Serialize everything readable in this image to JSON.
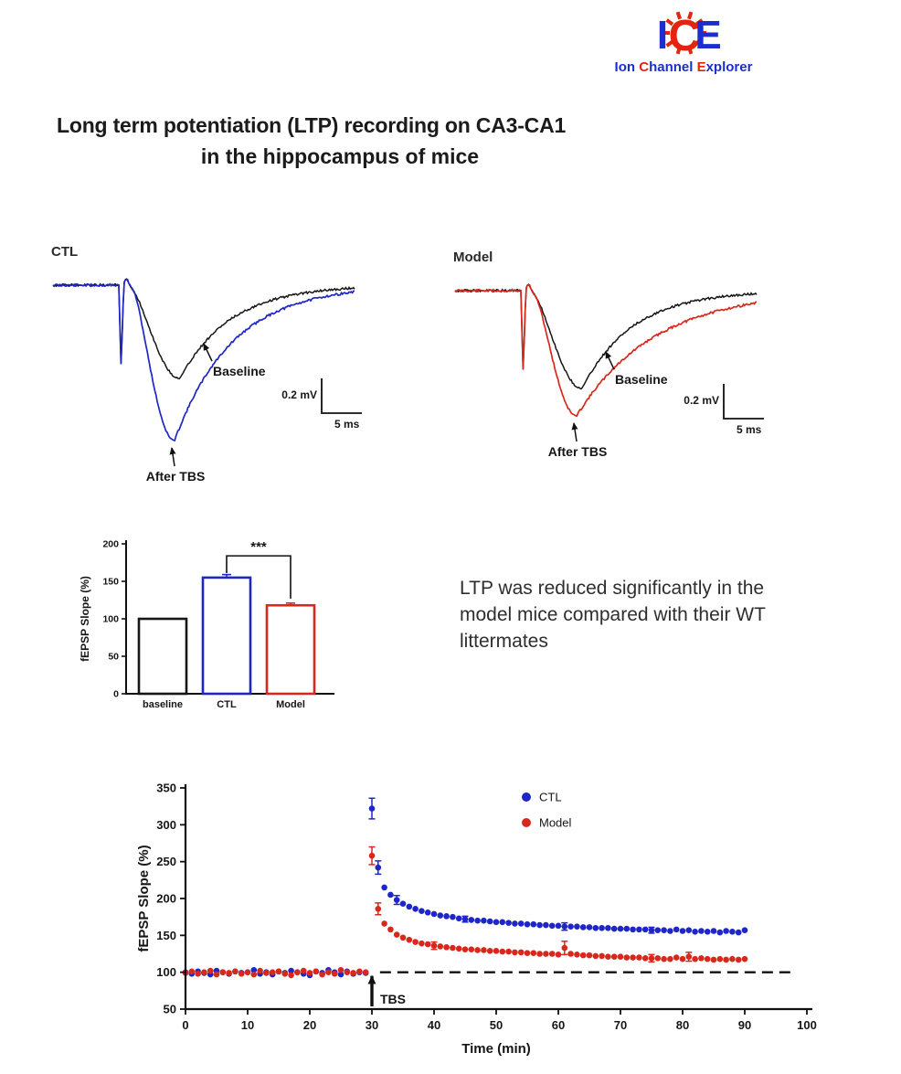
{
  "logo": {
    "mark_letters": [
      {
        "ch": "I",
        "color": "#1b2fd0"
      },
      {
        "ch": "C",
        "color": "#e3240e"
      },
      {
        "ch": "E",
        "color": "#1b2fd0"
      }
    ],
    "text_parts": [
      {
        "text": "Ion ",
        "color": "#1b2fd0"
      },
      {
        "text": "C",
        "color": "#e3240e"
      },
      {
        "text": "hannel ",
        "color": "#1b2fd0"
      },
      {
        "text": "E",
        "color": "#e3240e"
      },
      {
        "text": "xplorer",
        "color": "#1b2fd0"
      }
    ]
  },
  "title": {
    "line1": "Long term potentiation (LTP) recording on CA3-CA1",
    "line2": "in the hippocampus of mice"
  },
  "note": "LTP was reduced significantly in the model mice compared with their WT littermates",
  "trace_panels": [
    {
      "id": "ctl",
      "label": "CTL",
      "baseline_color": "#161616",
      "tbs_color": "#1f26c8",
      "baseline_label": "Baseline",
      "after_tbs_label": "After TBS",
      "scale_v_label": "0.2 mV",
      "scale_h_label": "5 ms",
      "baseline_depth": 102,
      "tbs_depth": 170,
      "baseline_tau": 55,
      "tbs_tau": 63
    },
    {
      "id": "model",
      "label": "Model",
      "baseline_color": "#161616",
      "tbs_color": "#d8281c",
      "baseline_label": "Baseline",
      "after_tbs_label": "After TBS",
      "scale_v_label": "0.2 mV",
      "scale_h_label": "5 ms",
      "baseline_depth": 107,
      "tbs_depth": 137,
      "baseline_tau": 55,
      "tbs_tau": 85
    }
  ],
  "chart_data": [
    {
      "type": "bar",
      "title": "",
      "ylabel": "fEPSP Slope (%)",
      "ylim": [
        0,
        200
      ],
      "yticks": [
        0,
        50,
        100,
        150,
        200
      ],
      "categories": [
        "baseline",
        "CTL",
        "Model"
      ],
      "values": [
        100,
        155,
        118
      ],
      "errors": [
        0,
        4,
        3
      ],
      "bar_colors": [
        "#161616",
        "#1f26c8",
        "#d8281c"
      ],
      "significance": {
        "label": "***",
        "between": [
          "CTL",
          "Model"
        ]
      }
    },
    {
      "type": "scatter",
      "title": "",
      "xlabel": "Time (min)",
      "ylabel": "fEPSP Slope (%)",
      "xlim": [
        0,
        100
      ],
      "ylim": [
        50,
        350
      ],
      "xticks": [
        0,
        10,
        20,
        30,
        40,
        50,
        60,
        70,
        80,
        90,
        100
      ],
      "yticks": [
        50,
        100,
        150,
        200,
        250,
        300,
        350
      ],
      "dashed_line_y": 100,
      "tbs_annotation": {
        "label": "TBS",
        "x": 30
      },
      "legend": [
        {
          "name": "CTL",
          "color": "#1f26c8"
        },
        {
          "name": "Model",
          "color": "#d8281c"
        }
      ],
      "series": [
        {
          "name": "CTL",
          "color": "#1f26c8",
          "x": [
            0,
            1,
            2,
            3,
            4,
            5,
            6,
            7,
            8,
            9,
            10,
            11,
            12,
            13,
            14,
            15,
            16,
            17,
            18,
            19,
            20,
            21,
            22,
            23,
            24,
            25,
            26,
            27,
            28,
            29,
            30,
            31,
            32,
            33,
            34,
            35,
            36,
            37,
            38,
            39,
            40,
            41,
            42,
            43,
            44,
            45,
            46,
            47,
            48,
            49,
            50,
            51,
            52,
            53,
            54,
            55,
            56,
            57,
            58,
            59,
            60,
            61,
            62,
            63,
            64,
            65,
            66,
            67,
            68,
            69,
            70,
            71,
            72,
            73,
            74,
            75,
            76,
            77,
            78,
            79,
            80,
            81,
            82,
            83,
            84,
            85,
            86,
            87,
            88,
            89,
            90
          ],
          "y": [
            100,
            98,
            101,
            99,
            97,
            102,
            100,
            98,
            101,
            99,
            100,
            103,
            98,
            100,
            97,
            101,
            99,
            102,
            100,
            98,
            96,
            101,
            99,
            103,
            100,
            97,
            101,
            98,
            100,
            99,
            322,
            242,
            215,
            205,
            198,
            193,
            189,
            186,
            183,
            181,
            179,
            177,
            176,
            175,
            173,
            172,
            171,
            170,
            170,
            169,
            168,
            168,
            167,
            166,
            166,
            165,
            165,
            164,
            164,
            163,
            163,
            162,
            162,
            162,
            161,
            161,
            160,
            160,
            160,
            159,
            159,
            159,
            158,
            158,
            158,
            157,
            157,
            157,
            156,
            158,
            156,
            157,
            155,
            156,
            155,
            156,
            154,
            156,
            155,
            154,
            157
          ],
          "errors": {
            "30": 14,
            "31": 9,
            "34": 6,
            "45": 4,
            "61": 5,
            "75": 4
          }
        },
        {
          "name": "Model",
          "color": "#d8281c",
          "x": [
            0,
            1,
            2,
            3,
            4,
            5,
            6,
            7,
            8,
            9,
            10,
            11,
            12,
            13,
            14,
            15,
            16,
            17,
            18,
            19,
            20,
            21,
            22,
            23,
            24,
            25,
            26,
            27,
            28,
            29,
            30,
            31,
            32,
            33,
            34,
            35,
            36,
            37,
            38,
            39,
            40,
            41,
            42,
            43,
            44,
            45,
            46,
            47,
            48,
            49,
            50,
            51,
            52,
            53,
            54,
            55,
            56,
            57,
            58,
            59,
            60,
            61,
            62,
            63,
            64,
            65,
            66,
            67,
            68,
            69,
            70,
            71,
            72,
            73,
            74,
            75,
            76,
            77,
            78,
            79,
            80,
            81,
            82,
            83,
            84,
            85,
            86,
            87,
            88,
            89,
            90
          ],
          "y": [
            99,
            101,
            98,
            100,
            102,
            97,
            100,
            99,
            101,
            98,
            100,
            97,
            102,
            99,
            100,
            101,
            98,
            96,
            100,
            102,
            99,
            101,
            97,
            100,
            98,
            103,
            100,
            99,
            101,
            100,
            258,
            186,
            166,
            158,
            151,
            147,
            144,
            141,
            139,
            138,
            136,
            135,
            134,
            133,
            132,
            131,
            131,
            130,
            130,
            129,
            129,
            128,
            128,
            127,
            127,
            126,
            126,
            125,
            125,
            125,
            124,
            133,
            125,
            124,
            123,
            123,
            122,
            122,
            121,
            121,
            121,
            120,
            120,
            120,
            119,
            119,
            119,
            118,
            118,
            120,
            118,
            121,
            118,
            119,
            118,
            117,
            118,
            117,
            118,
            117,
            118
          ],
          "errors": {
            "30": 12,
            "31": 8,
            "40": 5,
            "61": 9,
            "75": 5,
            "81": 6
          }
        }
      ]
    }
  ]
}
